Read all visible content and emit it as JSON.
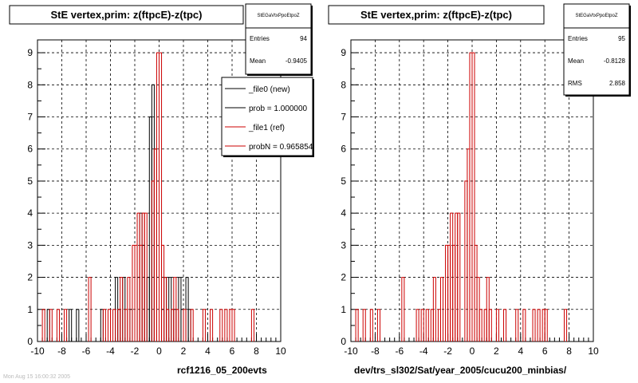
{
  "footer": {
    "stamp": "Mon Aug 15 16:00:32 2005"
  },
  "chart_data": [
    {
      "type": "histogram",
      "title": "StE  vertex,prim: z(ftpcE)-z(tpc)",
      "xlabel": "rcf1216_05_200evts",
      "xlim": [
        -10,
        10
      ],
      "ylim": [
        0,
        9.4
      ],
      "x_ticks": [
        "-10",
        "-8",
        "-6",
        "-4",
        "-2",
        "0",
        "2",
        "4",
        "6",
        "8",
        "10"
      ],
      "y_ticks": [
        "0",
        "1",
        "2",
        "3",
        "4",
        "5",
        "6",
        "7",
        "8",
        "9"
      ],
      "grid": true,
      "bin_width": 0.2,
      "stats": {
        "name": "StEGaVtxPpoEtpoZ",
        "rows": [
          {
            "label": "Entries",
            "value": "94"
          },
          {
            "label": "Mean",
            "value": "-0.9405"
          }
        ]
      },
      "legend": {
        "position": "top-right",
        "entries": [
          {
            "label": "_file0 (new)",
            "color": "#000000"
          },
          {
            "label": "prob = 1.000000",
            "color": "#000000"
          },
          {
            "label": "_file1 (ref)",
            "color": "#cc0000"
          },
          {
            "label": "probN = 0.965854",
            "color": "#cc0000"
          }
        ]
      },
      "series": [
        {
          "name": "_file0 (new)",
          "color": "#000000",
          "bins": [
            [
              -9.2,
              1
            ],
            [
              -7.4,
              1
            ],
            [
              -6.8,
              1
            ],
            [
              -4.8,
              1
            ],
            [
              -3.6,
              2
            ],
            [
              -3.4,
              1
            ],
            [
              -3.0,
              2
            ],
            [
              -2.4,
              1
            ],
            [
              -1.8,
              2
            ],
            [
              -1.6,
              4
            ],
            [
              -1.4,
              3
            ],
            [
              -1.0,
              2
            ],
            [
              -0.8,
              7
            ],
            [
              -0.6,
              8
            ],
            [
              -0.4,
              6
            ],
            [
              0.2,
              1
            ],
            [
              0.4,
              2
            ],
            [
              0.8,
              2
            ],
            [
              1.2,
              1
            ],
            [
              1.6,
              2
            ],
            [
              1.8,
              1
            ],
            [
              2.2,
              2
            ],
            [
              2.4,
              1
            ]
          ]
        },
        {
          "name": "_file1 (ref)",
          "color": "#cc0000",
          "bins": [
            [
              -9.6,
              1
            ],
            [
              -9.0,
              1
            ],
            [
              -8.4,
              1
            ],
            [
              -7.8,
              1
            ],
            [
              -5.8,
              2
            ],
            [
              -4.6,
              1
            ],
            [
              -4.2,
              1
            ],
            [
              -3.8,
              1
            ],
            [
              -3.4,
              1
            ],
            [
              -3.2,
              2
            ],
            [
              -2.8,
              1
            ],
            [
              -2.6,
              2
            ],
            [
              -2.2,
              3
            ],
            [
              -2.0,
              3
            ],
            [
              -1.8,
              4
            ],
            [
              -1.6,
              3
            ],
            [
              -1.4,
              4
            ],
            [
              -1.2,
              4
            ],
            [
              -0.6,
              5
            ],
            [
              -0.4,
              6
            ],
            [
              -0.2,
              9
            ],
            [
              0.0,
              9
            ],
            [
              0.2,
              3
            ],
            [
              0.4,
              2
            ],
            [
              0.6,
              1
            ],
            [
              1.0,
              1
            ],
            [
              1.2,
              2
            ],
            [
              1.4,
              1
            ],
            [
              2.0,
              1
            ],
            [
              2.6,
              1
            ],
            [
              3.6,
              1
            ],
            [
              4.2,
              1
            ],
            [
              5.0,
              1
            ],
            [
              5.4,
              1
            ],
            [
              5.8,
              1
            ],
            [
              6.0,
              1
            ],
            [
              7.6,
              1
            ]
          ]
        }
      ]
    },
    {
      "type": "histogram",
      "title": "StE  vertex,prim: z(ftpcE)-z(tpc)",
      "xlabel": "dev/trs_sl302/Sat/year_2005/cucu200_minbias/",
      "xlim": [
        -10,
        10
      ],
      "ylim": [
        0,
        9.4
      ],
      "x_ticks": [
        "-10",
        "-8",
        "-6",
        "-4",
        "-2",
        "0",
        "2",
        "4",
        "6",
        "8",
        "10"
      ],
      "y_ticks": [
        "0",
        "1",
        "2",
        "3",
        "4",
        "5",
        "6",
        "7",
        "8",
        "9"
      ],
      "grid": true,
      "bin_width": 0.2,
      "stats": {
        "name": "StEGaVtxPpoEtpoZ",
        "rows": [
          {
            "label": "Entries",
            "value": "95"
          },
          {
            "label": "Mean",
            "value": "-0.8128"
          },
          {
            "label": "RMS",
            "value": "2.858"
          }
        ]
      },
      "series": [
        {
          "name": "_file1 (ref)",
          "color": "#cc0000",
          "bins": [
            [
              -9.6,
              1
            ],
            [
              -9.0,
              1
            ],
            [
              -8.4,
              1
            ],
            [
              -7.8,
              1
            ],
            [
              -5.8,
              2
            ],
            [
              -4.6,
              1
            ],
            [
              -4.2,
              1
            ],
            [
              -3.8,
              1
            ],
            [
              -3.4,
              1
            ],
            [
              -3.2,
              2
            ],
            [
              -2.8,
              1
            ],
            [
              -2.6,
              2
            ],
            [
              -2.2,
              3
            ],
            [
              -2.0,
              3
            ],
            [
              -1.8,
              4
            ],
            [
              -1.6,
              3
            ],
            [
              -1.4,
              4
            ],
            [
              -1.2,
              4
            ],
            [
              -0.6,
              5
            ],
            [
              -0.4,
              6
            ],
            [
              -0.2,
              9
            ],
            [
              0.0,
              9
            ],
            [
              0.2,
              3
            ],
            [
              0.4,
              2
            ],
            [
              0.6,
              1
            ],
            [
              1.0,
              1
            ],
            [
              1.2,
              2
            ],
            [
              1.4,
              1
            ],
            [
              2.0,
              1
            ],
            [
              2.6,
              1
            ],
            [
              3.6,
              1
            ],
            [
              4.2,
              1
            ],
            [
              5.0,
              1
            ],
            [
              5.4,
              1
            ],
            [
              5.8,
              1
            ],
            [
              6.0,
              1
            ],
            [
              7.6,
              1
            ]
          ]
        }
      ]
    }
  ]
}
